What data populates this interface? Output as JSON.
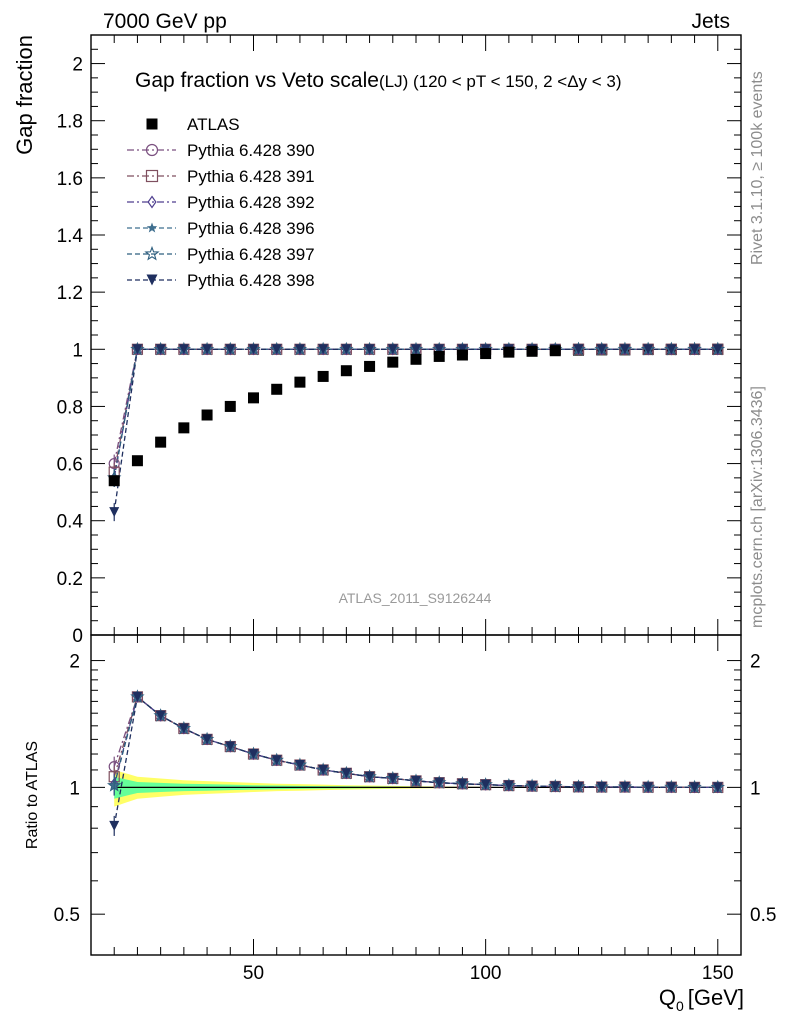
{
  "header": {
    "left": "7000 GeV pp",
    "right": "Jets"
  },
  "side_labels": {
    "rivet": "Rivet 3.1.10, ≥ 100k events",
    "mcplots": "mcplots.cern.ch [arXiv:1306.3436]"
  },
  "chart_data": [
    {
      "type": "scatter",
      "panel": "main",
      "title": "Gap fraction vs Veto scale",
      "subtitle": "(LJ) (120 < pT < 150, 2 <Δy < 3)",
      "ylabel": "Gap fraction",
      "xlabel": "",
      "watermark": "ATLAS_2011_S9126244",
      "xlim": [
        15,
        155
      ],
      "ylim": [
        0,
        2.1
      ],
      "yticks": [
        0,
        0.2,
        0.4,
        0.6,
        0.8,
        1,
        1.2,
        1.4,
        1.6,
        1.8,
        2
      ],
      "ytick_labels": [
        "0",
        "0.2",
        "0.4",
        "0.6",
        "0.8",
        "1",
        "1.2",
        "1.4",
        "1.6",
        "1.8",
        "2"
      ],
      "legend_position": "top-left",
      "x": [
        20,
        25,
        30,
        35,
        40,
        45,
        50,
        55,
        60,
        65,
        70,
        75,
        80,
        85,
        90,
        95,
        100,
        105,
        110,
        115,
        120,
        125,
        130,
        135,
        140,
        145,
        150
      ],
      "series": [
        {
          "name": "ATLAS",
          "marker": "square-filled",
          "color": "#000000",
          "line": "none",
          "values": [
            0.54,
            0.61,
            0.675,
            0.725,
            0.77,
            0.8,
            0.83,
            0.86,
            0.885,
            0.905,
            0.925,
            0.94,
            0.955,
            0.965,
            0.975,
            0.98,
            0.985,
            0.99,
            0.993,
            0.995,
            0.997,
            0.998,
            0.998,
            0.999,
            0.999,
            1.0,
            1.0
          ]
        },
        {
          "name": "Pythia 6.428 390",
          "marker": "circle-open",
          "color": "#7a4f7f",
          "line": "dashdot",
          "values": [
            0.6,
            1,
            1,
            1,
            1,
            1,
            1,
            1,
            1,
            1,
            1,
            1,
            1,
            1,
            1,
            1,
            1,
            1,
            1,
            1,
            1,
            1,
            1,
            1,
            1,
            1,
            1
          ]
        },
        {
          "name": "Pythia 6.428 391",
          "marker": "square-open",
          "color": "#7f4f5f",
          "line": "dashdot",
          "values": [
            0.57,
            1,
            1,
            1,
            1,
            1,
            1,
            1,
            1,
            1,
            1,
            1,
            1,
            1,
            1,
            1,
            1,
            1,
            1,
            1,
            1,
            1,
            1,
            1,
            1,
            1,
            1
          ]
        },
        {
          "name": "Pythia 6.428 392",
          "marker": "diamond-open",
          "color": "#4f3f8f",
          "line": "dashdot",
          "values": [
            0.55,
            1,
            1,
            1,
            1,
            1,
            1,
            1,
            1,
            1,
            1,
            1,
            1,
            1,
            1,
            1,
            1,
            1,
            1,
            1,
            1,
            1,
            1,
            1,
            1,
            1,
            1
          ]
        },
        {
          "name": "Pythia 6.428 396",
          "marker": "star-filled",
          "color": "#3f6f8f",
          "line": "dashed",
          "values": [
            0.55,
            1,
            1,
            1,
            1,
            1,
            1,
            1,
            1,
            1,
            1,
            1,
            1,
            1,
            1,
            1,
            1,
            1,
            1,
            1,
            1,
            1,
            1,
            1,
            1,
            1,
            1
          ]
        },
        {
          "name": "Pythia 6.428 397",
          "marker": "star-open",
          "color": "#2f5f7f",
          "line": "dashed",
          "values": [
            0.55,
            1,
            1,
            1,
            1,
            1,
            1,
            1,
            1,
            1,
            1,
            1,
            1,
            1,
            1,
            1,
            1,
            1,
            1,
            1,
            1,
            1,
            1,
            1,
            1,
            1,
            1
          ]
        },
        {
          "name": "Pythia 6.428 398",
          "marker": "triangle-down-filled",
          "color": "#1f2f5f",
          "line": "dashed",
          "values": [
            0.43,
            1,
            1,
            1,
            1,
            1,
            1,
            1,
            1,
            1,
            1,
            1,
            1,
            1,
            1,
            1,
            1,
            1,
            1,
            1,
            1,
            1,
            1,
            1,
            1,
            1,
            1
          ]
        }
      ]
    },
    {
      "type": "line",
      "panel": "ratio",
      "ylabel": "Ratio to ATLAS",
      "xlabel": "Q",
      "xlabel_sub": "0",
      "xlabel_unit": "[GeV]",
      "xlim": [
        15,
        155
      ],
      "ylim": [
        0.4,
        2.3
      ],
      "log_y": true,
      "xticks": [
        50,
        100,
        150
      ],
      "xtick_labels": [
        "50",
        "100",
        "150"
      ],
      "yticks": [
        0.5,
        1,
        2
      ],
      "ytick_labels": [
        "0.5",
        "1",
        "2"
      ],
      "band_colors": [
        "#ffff66",
        "#66ff99"
      ],
      "x": [
        20,
        25,
        30,
        35,
        40,
        45,
        50,
        55,
        60,
        65,
        70,
        75,
        80,
        85,
        90,
        95,
        100,
        105,
        110,
        115,
        120,
        125,
        130,
        135,
        140,
        145,
        150
      ],
      "band_yellow_halfwidth": [
        0.1,
        0.06,
        0.05,
        0.04,
        0.035,
        0.03,
        0.025,
        0.02,
        0.018,
        0.015,
        0.012,
        0.01,
        0.008,
        0.006,
        0.005,
        0.004,
        0.003,
        0.002,
        0.002,
        0.001,
        0.001,
        0.001,
        0.001,
        0.001,
        0.001,
        0.001,
        0.001
      ],
      "band_green_halfwidth": [
        0.06,
        0.03,
        0.025,
        0.02,
        0.018,
        0.015,
        0.012,
        0.01,
        0.008,
        0.007,
        0.006,
        0.005,
        0.004,
        0.003,
        0.002,
        0.002,
        0.001,
        0.001,
        0.001,
        0.001,
        0.001,
        0.001,
        0.001,
        0.001,
        0.001,
        0.001,
        0.001
      ],
      "series": [
        {
          "name": "Pythia 6.428 390",
          "color": "#7a4f7f",
          "values": [
            1.12,
            1.64,
            1.48,
            1.38,
            1.3,
            1.25,
            1.2,
            1.16,
            1.13,
            1.1,
            1.08,
            1.06,
            1.05,
            1.036,
            1.026,
            1.02,
            1.015,
            1.01,
            1.007,
            1.005,
            1.003,
            1.002,
            1.002,
            1.001,
            1.001,
            1.0,
            1.0
          ]
        },
        {
          "name": "Pythia 6.428 391",
          "color": "#7f4f5f",
          "values": [
            1.06,
            1.64,
            1.48,
            1.38,
            1.3,
            1.25,
            1.2,
            1.16,
            1.13,
            1.1,
            1.08,
            1.06,
            1.05,
            1.036,
            1.026,
            1.02,
            1.015,
            1.01,
            1.007,
            1.005,
            1.003,
            1.002,
            1.002,
            1.001,
            1.001,
            1.0,
            1.0
          ]
        },
        {
          "name": "Pythia 6.428 392",
          "color": "#4f3f8f",
          "values": [
            1.02,
            1.64,
            1.48,
            1.38,
            1.3,
            1.25,
            1.2,
            1.16,
            1.13,
            1.1,
            1.08,
            1.06,
            1.05,
            1.036,
            1.026,
            1.02,
            1.015,
            1.01,
            1.007,
            1.005,
            1.003,
            1.002,
            1.002,
            1.001,
            1.001,
            1.0,
            1.0
          ]
        },
        {
          "name": "Pythia 6.428 396",
          "color": "#3f6f8f",
          "values": [
            1.01,
            1.64,
            1.48,
            1.38,
            1.3,
            1.25,
            1.2,
            1.16,
            1.13,
            1.1,
            1.08,
            1.06,
            1.05,
            1.036,
            1.026,
            1.02,
            1.015,
            1.01,
            1.007,
            1.005,
            1.003,
            1.002,
            1.002,
            1.001,
            1.001,
            1.0,
            1.0
          ]
        },
        {
          "name": "Pythia 6.428 397",
          "color": "#2f5f7f",
          "values": [
            1.01,
            1.64,
            1.48,
            1.38,
            1.3,
            1.25,
            1.2,
            1.16,
            1.13,
            1.1,
            1.08,
            1.06,
            1.05,
            1.036,
            1.026,
            1.02,
            1.015,
            1.01,
            1.007,
            1.005,
            1.003,
            1.002,
            1.002,
            1.001,
            1.001,
            1.0,
            1.0
          ]
        },
        {
          "name": "Pythia 6.428 398",
          "color": "#1f2f5f",
          "values": [
            0.81,
            1.64,
            1.48,
            1.38,
            1.3,
            1.25,
            1.2,
            1.16,
            1.13,
            1.1,
            1.08,
            1.06,
            1.05,
            1.036,
            1.026,
            1.02,
            1.015,
            1.01,
            1.007,
            1.005,
            1.003,
            1.002,
            1.002,
            1.001,
            1.001,
            1.0,
            1.0
          ]
        }
      ]
    }
  ]
}
